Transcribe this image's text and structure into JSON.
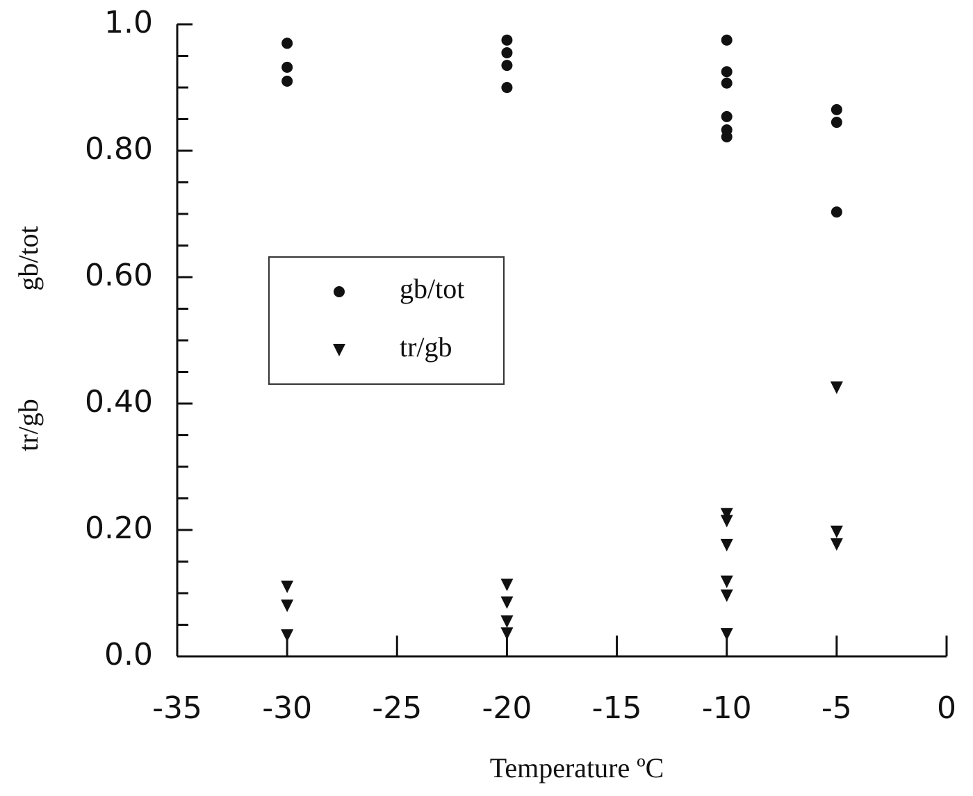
{
  "chart_data": {
    "type": "scatter",
    "xlabel": "Temperature ºC",
    "ylabels": [
      "gb/tot",
      "tr/gb"
    ],
    "xlim": [
      -35,
      0
    ],
    "xticks": [
      -35,
      -30,
      -25,
      -20,
      -15,
      -10,
      -5,
      0
    ],
    "ylim": [
      0,
      1.0
    ],
    "yticks": [
      {
        "value": 0,
        "label": "0.0"
      },
      {
        "value": 0.2,
        "label": "0.20"
      },
      {
        "value": 0.4,
        "label": "0.40"
      },
      {
        "value": 0.6,
        "label": "0.60"
      },
      {
        "value": 0.8,
        "label": "0.80"
      },
      {
        "value": 1.0,
        "label": "1.0"
      }
    ],
    "yminorticks": [
      0.05,
      0.1,
      0.15,
      0.25,
      0.3,
      0.35,
      0.45,
      0.5,
      0.55,
      0.65,
      0.7,
      0.75,
      0.85,
      0.9,
      0.95
    ],
    "series": [
      {
        "name": "gb/tot",
        "marker": "circle",
        "color": "#111111",
        "x": [
          -30,
          -30,
          -30,
          -20,
          -20,
          -20,
          -20,
          -10,
          -10,
          -10,
          -10,
          -10,
          -10,
          -5,
          -5,
          -5
        ],
        "values": [
          0.97,
          0.932,
          0.91,
          0.975,
          0.955,
          0.935,
          0.9,
          0.975,
          0.925,
          0.907,
          0.854,
          0.833,
          0.822,
          0.865,
          0.845,
          0.703
        ]
      },
      {
        "name": "tr/gb",
        "marker": "triangle",
        "color": "#111111",
        "x": [
          -30,
          -30,
          -30,
          -20,
          -20,
          -20,
          -20,
          -10,
          -10,
          -10,
          -10,
          -10,
          -10,
          -5,
          -5,
          -5
        ],
        "values": [
          0.11,
          0.08,
          0.033,
          0.113,
          0.085,
          0.055,
          0.036,
          0.225,
          0.214,
          0.176,
          0.118,
          0.096,
          0.035,
          0.425,
          0.197,
          0.177
        ]
      }
    ],
    "legend": "upper-left"
  }
}
